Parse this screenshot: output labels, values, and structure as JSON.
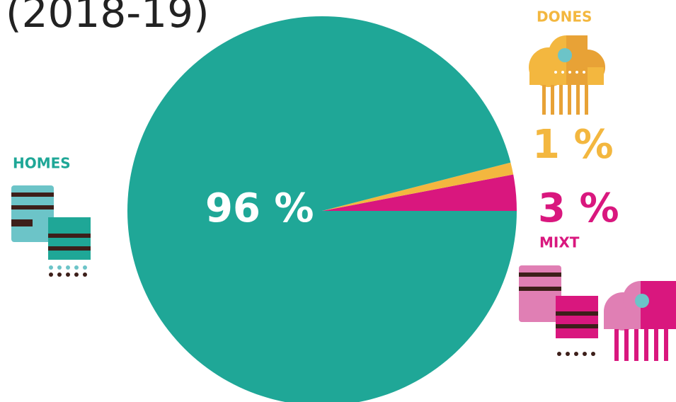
{
  "chart_data": {
    "type": "pie",
    "title": "(2018-19)",
    "categories": [
      "HOMES",
      "DONES",
      "MIXT"
    ],
    "values": [
      96,
      1,
      3
    ],
    "value_labels": [
      "96 %",
      "1 %",
      "3 %"
    ],
    "colors": [
      "#1fa797",
      "#f3b73f",
      "#d9177e"
    ]
  }
}
